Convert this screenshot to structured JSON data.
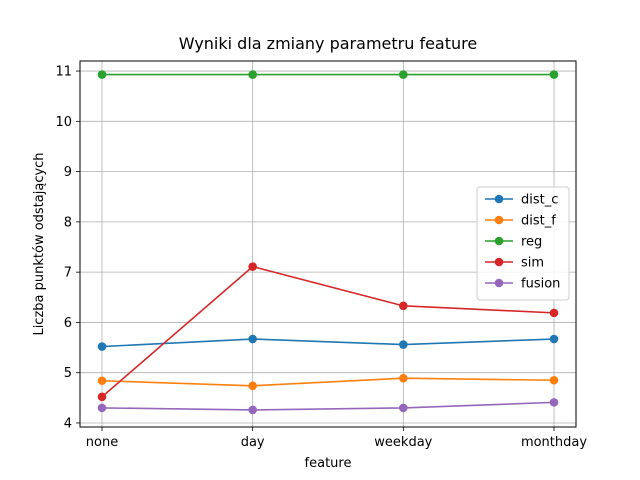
{
  "chart_data": {
    "type": "line",
    "title": "Wyniki dla zmiany parametru feature",
    "xlabel": "feature",
    "ylabel": "Liczba punktów odstających",
    "categories": [
      "none",
      "day",
      "weekday",
      "monthday"
    ],
    "ylim": [
      3.92,
      11.2
    ],
    "yticks": [
      4,
      5,
      6,
      7,
      8,
      9,
      10,
      11
    ],
    "grid": true,
    "legend_position": "center-right",
    "series": [
      {
        "name": "dist_c",
        "color": "#1f77b4",
        "values": [
          5.52,
          5.67,
          5.56,
          5.67
        ]
      },
      {
        "name": "dist_f",
        "color": "#ff7f0e",
        "values": [
          4.84,
          4.74,
          4.89,
          4.85
        ]
      },
      {
        "name": "reg",
        "color": "#2ca02c",
        "values": [
          10.93,
          10.93,
          10.93,
          10.93
        ]
      },
      {
        "name": "sim",
        "color": "#d62728",
        "values": [
          4.52,
          7.11,
          6.33,
          6.19
        ]
      },
      {
        "name": "fusion",
        "color": "#9467bd",
        "values": [
          4.3,
          4.26,
          4.3,
          4.41
        ]
      }
    ]
  }
}
